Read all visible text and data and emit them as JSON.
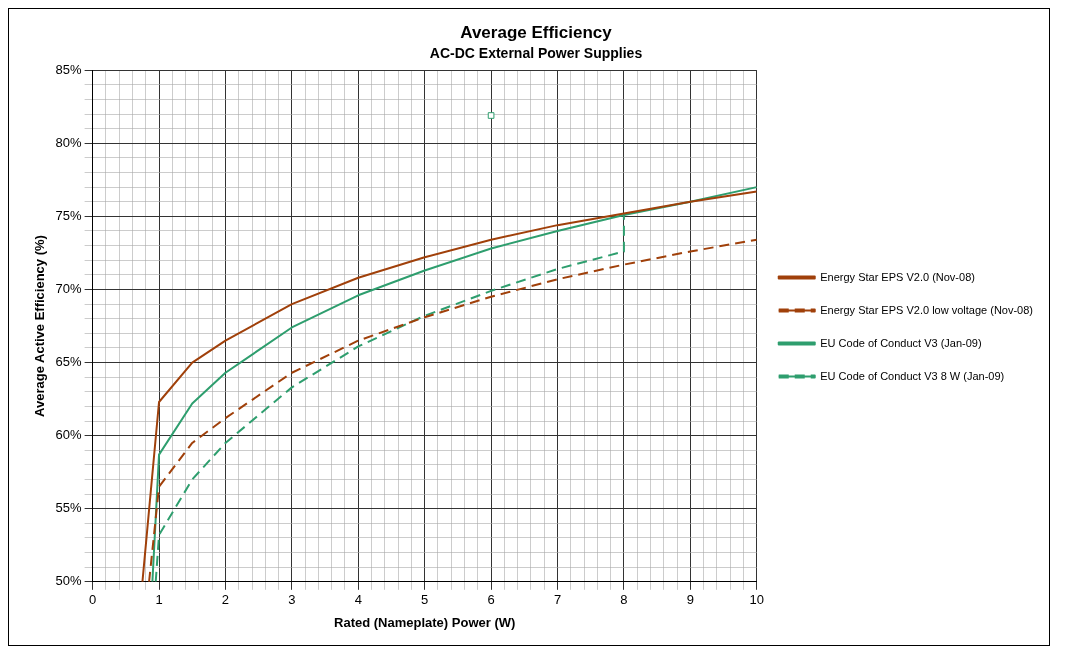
{
  "chart_data": {
    "type": "line",
    "title": "Average Efficiency",
    "subtitle": "AC-DC External Power Supplies",
    "xlabel": "Rated (Nameplate) Power (W)",
    "ylabel": "Average Active Efficiency (%)",
    "xlim": [
      0,
      10
    ],
    "ylim": [
      50,
      85
    ],
    "xticks": [
      0,
      {
        "value": 0.2,
        "label": null
      },
      {
        "value": 0.4,
        "label": null
      },
      {
        "value": 0.6,
        "label": null
      },
      {
        "value": 0.8,
        "label": null
      },
      1,
      {
        "value": 1.2,
        "label": null
      },
      {
        "value": 1.4,
        "label": null
      },
      {
        "value": 1.6,
        "label": null
      },
      {
        "value": 1.8,
        "label": null
      },
      2,
      {
        "value": 2.2,
        "label": null
      },
      {
        "value": 2.4,
        "label": null
      },
      {
        "value": 2.6,
        "label": null
      },
      {
        "value": 2.8,
        "label": null
      },
      3,
      {
        "value": 3.2,
        "label": null
      },
      {
        "value": 3.4,
        "label": null
      },
      {
        "value": 3.6,
        "label": null
      },
      {
        "value": 3.8,
        "label": null
      },
      4,
      {
        "value": 4.2,
        "label": null
      },
      {
        "value": 4.4,
        "label": null
      },
      {
        "value": 4.6,
        "label": null
      },
      {
        "value": 4.8,
        "label": null
      },
      5,
      {
        "value": 5.2,
        "label": null
      },
      {
        "value": 5.4,
        "label": null
      },
      {
        "value": 5.6,
        "label": null
      },
      {
        "value": 5.8,
        "label": null
      },
      6,
      {
        "value": 6.2,
        "label": null
      },
      {
        "value": 6.4,
        "label": null
      },
      {
        "value": 6.6,
        "label": null
      },
      {
        "value": 6.8,
        "label": null
      },
      7,
      {
        "value": 7.2,
        "label": null
      },
      {
        "value": 7.4,
        "label": null
      },
      {
        "value": 7.6,
        "label": null
      },
      {
        "value": 7.8,
        "label": null
      },
      8,
      {
        "value": 8.2,
        "label": null
      },
      {
        "value": 8.4,
        "label": null
      },
      {
        "value": 8.6,
        "label": null
      },
      {
        "value": 8.8,
        "label": null
      },
      9,
      {
        "value": 9.2,
        "label": null
      },
      {
        "value": 9.4,
        "label": null
      },
      {
        "value": 9.6,
        "label": null
      },
      {
        "value": 9.8,
        "label": null
      },
      10
    ],
    "yticks": [
      {
        "value": 50,
        "label": "50%"
      },
      {
        "value": 51,
        "label": null
      },
      {
        "value": 52,
        "label": null
      },
      {
        "value": 53,
        "label": null
      },
      {
        "value": 54,
        "label": null
      },
      {
        "value": 55,
        "label": "55%"
      },
      {
        "value": 56,
        "label": null
      },
      {
        "value": 57,
        "label": null
      },
      {
        "value": 58,
        "label": null
      },
      {
        "value": 59,
        "label": null
      },
      {
        "value": 60,
        "label": "60%"
      },
      {
        "value": 61,
        "label": null
      },
      {
        "value": 62,
        "label": null
      },
      {
        "value": 63,
        "label": null
      },
      {
        "value": 64,
        "label": null
      },
      {
        "value": 65,
        "label": "65%"
      },
      {
        "value": 66,
        "label": null
      },
      {
        "value": 67,
        "label": null
      },
      {
        "value": 68,
        "label": null
      },
      {
        "value": 69,
        "label": null
      },
      {
        "value": 70,
        "label": "70%"
      },
      {
        "value": 71,
        "label": null
      },
      {
        "value": 72,
        "label": null
      },
      {
        "value": 73,
        "label": null
      },
      {
        "value": 74,
        "label": null
      },
      {
        "value": 75,
        "label": "75%"
      },
      {
        "value": 76,
        "label": null
      },
      {
        "value": 77,
        "label": null
      },
      {
        "value": 78,
        "label": null
      },
      {
        "value": 79,
        "label": null
      },
      {
        "value": 80,
        "label": "80%"
      },
      {
        "value": 81,
        "label": null
      },
      {
        "value": 82,
        "label": null
      },
      {
        "value": 83,
        "label": null
      },
      {
        "value": 84,
        "label": null
      },
      {
        "value": 85,
        "label": "85%"
      }
    ],
    "grid": true,
    "legend": "right",
    "marker": "none",
    "series": [
      {
        "name": "Energy Star EPS V2.0 (Nov-08)",
        "color": "#a0400a",
        "line_style": "solid",
        "x": [
          0.75,
          1,
          1.5,
          2,
          3,
          4,
          5,
          6,
          7,
          8,
          9,
          10
        ],
        "values": [
          50,
          62.3,
          65,
          66.5,
          69,
          70.8,
          72.2,
          73.4,
          74.4,
          75.2,
          76,
          76.7
        ]
      },
      {
        "name": "Energy Star EPS V2.0 low voltage (Nov-08)",
        "color": "#a0400a",
        "line_style": "dashed",
        "x": [
          0.85,
          1,
          1.5,
          2,
          3,
          4,
          5,
          6,
          7,
          8,
          9,
          10
        ],
        "values": [
          50,
          56.5,
          59.5,
          61.2,
          64.3,
          66.5,
          68.1,
          69.5,
          70.7,
          71.7,
          72.6,
          73.4
        ]
      },
      {
        "name": "EU Code of Conduct V3 (Jan-09)",
        "color": "#2e9e6e",
        "line_style": "solid",
        "x": [
          0.9,
          1,
          1.5,
          2,
          3,
          4,
          5,
          6,
          7,
          8,
          9,
          10
        ],
        "values": [
          50,
          58.7,
          62.2,
          64.3,
          67.4,
          69.6,
          71.3,
          72.8,
          74,
          75.1,
          76,
          77
        ]
      },
      {
        "name": "EU Code of Conduct V3 8 W (Jan-09)",
        "color": "#2e9e6e",
        "line_style": "dashed",
        "x": [
          0.95,
          1,
          1.5,
          2,
          3,
          4,
          5,
          6,
          7,
          8,
          8
        ],
        "values": [
          50,
          53.2,
          57,
          59.5,
          63.3,
          66.1,
          68.2,
          69.9,
          71.4,
          72.6,
          75.1
        ]
      },
      {
        "type": "scatter",
        "color": "#2e9e6e",
        "marker": "square",
        "x": [
          6
        ],
        "values": [
          81.9
        ]
      }
    ]
  }
}
